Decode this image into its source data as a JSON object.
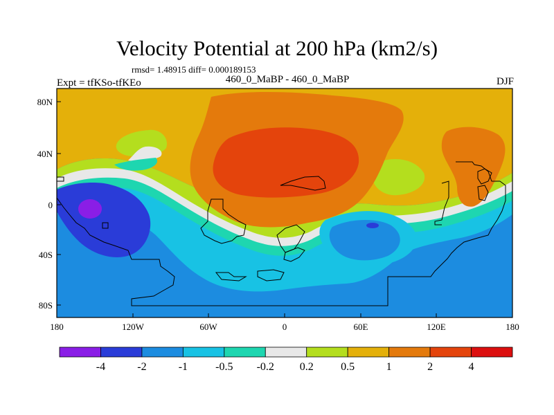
{
  "title": "Velocity Potential at 200 hPa (km2/s)",
  "stats": "rmsd= 1.48915  diff= 0.000189153",
  "left_header": "Expt = tfKSo-tfKEo",
  "center_header": "460_0_MaBP - 460_0_MaBP",
  "right_header": "DJF",
  "map": {
    "lon_ticks": [
      "180",
      "120W",
      "60W",
      "0",
      "60E",
      "120E",
      "180"
    ],
    "lat_ticks": [
      "80N",
      "40N",
      "0",
      "40S",
      "80S"
    ]
  },
  "colorbar": {
    "labels": [
      "-4",
      "-2",
      "-1",
      "-0.5",
      "-0.2",
      "0.2",
      "0.5",
      "1",
      "2",
      "4"
    ],
    "colors": [
      "#8a1ee6",
      "#2a3cd8",
      "#1c8ce0",
      "#18c2e4",
      "#1ed6b0",
      "#e8e8e8",
      "#b4de1e",
      "#e4b00a",
      "#e47a0c",
      "#e4440c",
      "#dc0f0f"
    ]
  },
  "palette": {
    "purple": "#8a1ee6",
    "deep_blue": "#2a3cd8",
    "blue": "#1c8ce0",
    "light_blue": "#18c2e4",
    "teal": "#1ed6b0",
    "white": "#e8e8e8",
    "yellow_green": "#b4de1e",
    "gold": "#e4b00a",
    "orange": "#e47a0c",
    "red_orange": "#e4440c"
  }
}
